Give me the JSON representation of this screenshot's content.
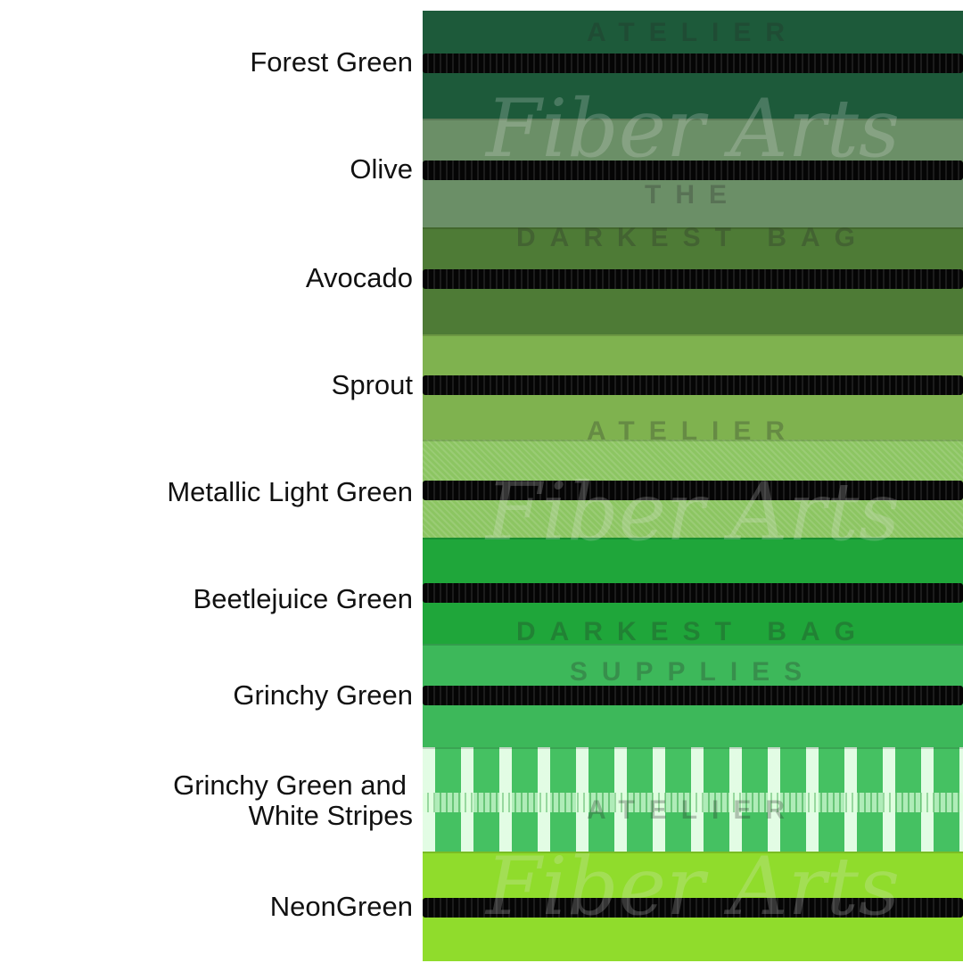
{
  "labels": [
    "Forest Green",
    "Olive",
    "Avocado",
    "Sprout",
    "Metallic Light Green",
    "Beetlejuice Green",
    "Grinchy Green",
    "Grinchy Green and",
    "White Stripes",
    "NeonGreen"
  ],
  "colors": {
    "forest_green": "#1d5a3a",
    "olive": "#6b8f67",
    "avocado": "#4e7b36",
    "sprout": "#7fb24f",
    "metallic_light_green": "#8cc562",
    "beetlejuice_green": "#1fa63a",
    "grinchy_green": "#3db85a",
    "grinchy_stripes": "#45c162",
    "neon_green": "#90dc2c",
    "zipper": "#0a0a0a"
  },
  "watermark": {
    "atelier": "ATELIER",
    "script": "Fiber Arts",
    "the": "THE",
    "darkest_bag": "DARKEST BAG",
    "supplies": "SUPPLIES"
  }
}
